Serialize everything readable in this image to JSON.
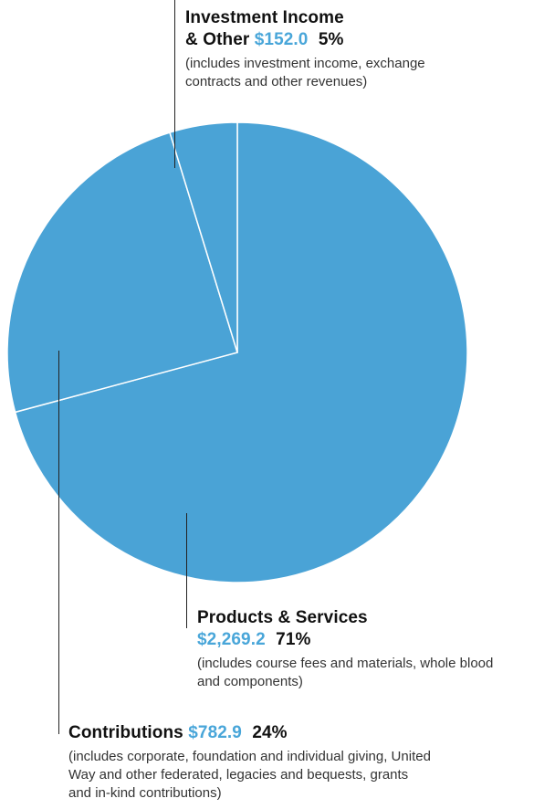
{
  "chart_data": {
    "type": "pie",
    "slices": [
      {
        "name": "Products & Services",
        "amount": "$2,269.2",
        "percent_label": "71%",
        "value": 2269.2,
        "description": "(includes course fees and materials, whole blood and components)"
      },
      {
        "name": "Contributions",
        "amount": "$782.9",
        "percent_label": "24%",
        "value": 782.9,
        "description": "(includes corporate, foundation and individual giving, United Way and other federated, legacies and bequests, grants and in-kind contributions)"
      },
      {
        "name": "Investment Income & Other",
        "amount": "$152.0",
        "percent_label": "5%",
        "value": 152.0,
        "description": "(includes investment income, exchange contracts and other revenues)"
      }
    ],
    "colors": {
      "slice": "#4aa3d6",
      "separator": "#ffffff",
      "amount": "#49a6d9",
      "leader": "#222222"
    }
  },
  "labels": {
    "investment": {
      "title_line1": "Investment Income",
      "title_line2": "& Other",
      "amount": "$152.0",
      "percent": "5%",
      "desc_line1": "(includes investment income, exchange",
      "desc_line2": "contracts and other revenues)"
    },
    "products": {
      "title": "Products & Services",
      "amount": "$2,269.2",
      "percent": "71%",
      "desc_line1": "(includes course fees and materials, whole blood",
      "desc_line2": "and components)"
    },
    "contributions": {
      "title": "Contributions",
      "amount": "$782.9",
      "percent": "24%",
      "desc_line1": "(includes corporate, foundation and individual giving, United",
      "desc_line2": "Way and other federated, legacies and bequests, grants",
      "desc_line3": "and in-kind contributions)"
    }
  }
}
